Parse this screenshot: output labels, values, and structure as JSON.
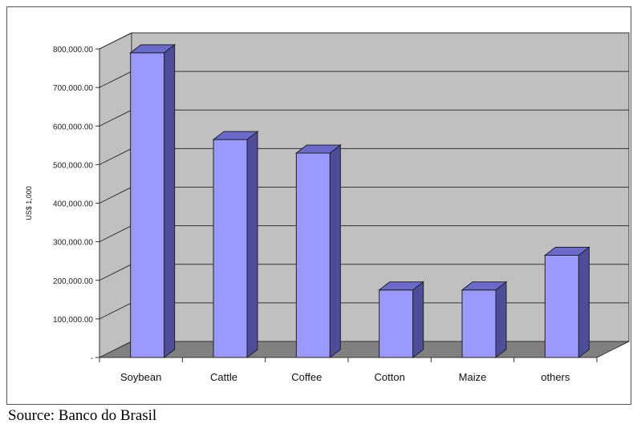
{
  "source_note": "Source: Banco do Brasil",
  "chart_data": {
    "type": "bar",
    "title": "",
    "xlabel": "",
    "ylabel": "US$ 1,000",
    "categories": [
      "Soybean",
      "Cattle",
      "Coffee",
      "Cotton",
      "Maize",
      "others"
    ],
    "values": [
      790000,
      565000,
      530000,
      175000,
      175000,
      265000
    ],
    "ylim": [
      0,
      800000
    ],
    "yticks": [
      0,
      100000,
      200000,
      300000,
      400000,
      500000,
      600000,
      700000,
      800000
    ],
    "ytick_labels": [
      "-",
      "100,000.00",
      "200,000.00",
      "300,000.00",
      "400,000.00",
      "500,000.00",
      "600,000.00",
      "700,000.00",
      "800,000.00"
    ],
    "grid": true,
    "legend": "none",
    "colors": {
      "bar_front": "#9999ff",
      "bar_side": "#4d4d99",
      "bar_top": "#6a6acc",
      "wall": "#c0c0c0",
      "floor": "#808080"
    }
  }
}
